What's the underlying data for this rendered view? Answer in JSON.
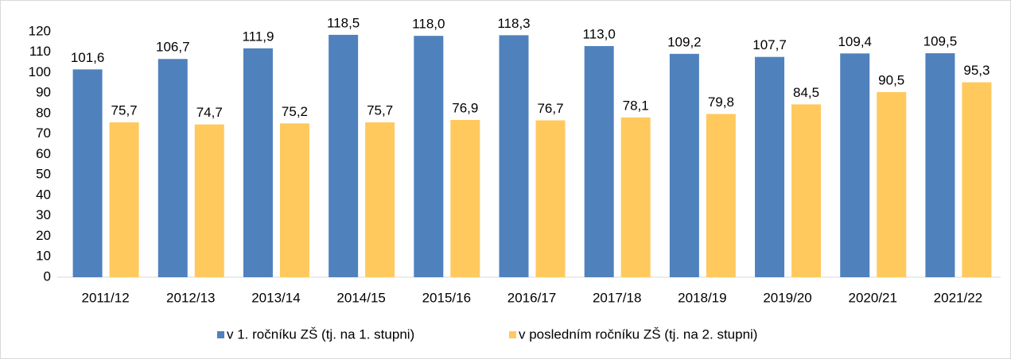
{
  "chart_data": {
    "type": "bar",
    "categories": [
      "2011/12",
      "2012/13",
      "2013/14",
      "2014/15",
      "2015/16",
      "2016/17",
      "2017/18",
      "2018/19",
      "2019/20",
      "2020/21",
      "2021/22"
    ],
    "series": [
      {
        "name": "v 1. ročníku ZŠ (tj. na 1. stupni)",
        "color": "#4f81bd",
        "values": [
          101.6,
          106.7,
          111.9,
          118.5,
          118.0,
          118.3,
          113.0,
          109.2,
          107.7,
          109.4,
          109.5
        ],
        "value_labels": [
          "101,6",
          "106,7",
          "111,9",
          "118,5",
          "118,0",
          "118,3",
          "113,0",
          "109,2",
          "107,7",
          "109,4",
          "109,5"
        ]
      },
      {
        "name": "v posledním ročníku ZŠ (tj. na 2. stupni)",
        "color": "#ffc95e",
        "values": [
          75.7,
          74.7,
          75.2,
          75.7,
          76.9,
          76.7,
          78.1,
          79.8,
          84.5,
          90.5,
          95.3
        ],
        "value_labels": [
          "75,7",
          "74,7",
          "75,2",
          "75,7",
          "76,9",
          "76,7",
          "78,1",
          "79,8",
          "84,5",
          "90,5",
          "95,3"
        ]
      }
    ],
    "ylim": [
      0,
      120
    ],
    "yticks": [
      0,
      10,
      20,
      30,
      40,
      50,
      60,
      70,
      80,
      90,
      100,
      110,
      120
    ],
    "legend": "bottom"
  }
}
